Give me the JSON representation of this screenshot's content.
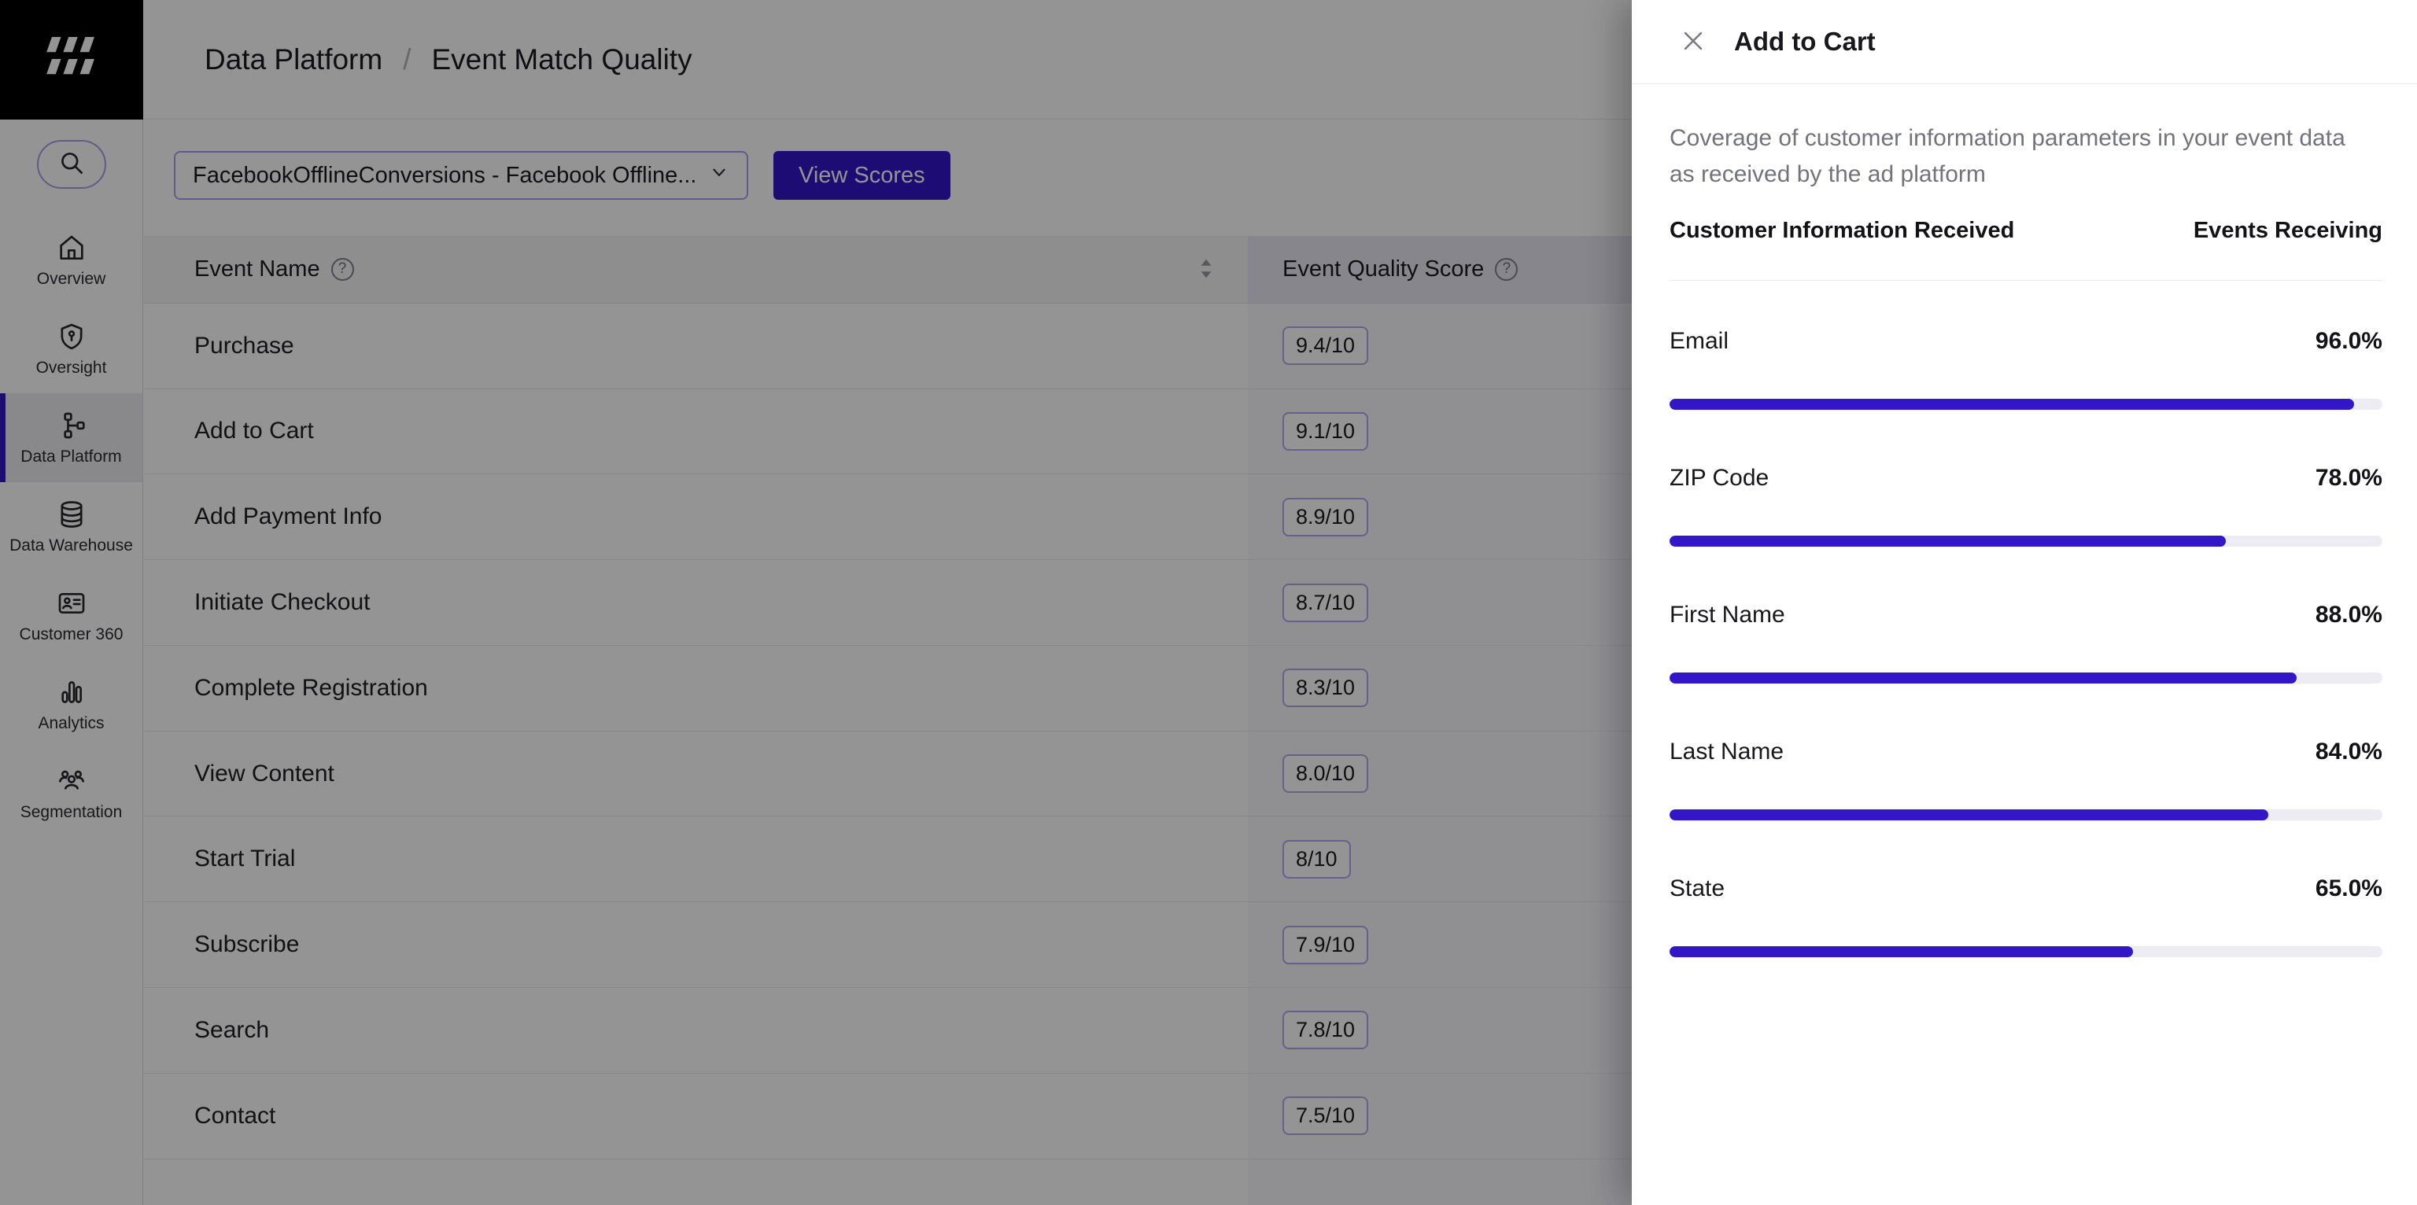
{
  "header": {
    "breadcrumb": {
      "section": "Data Platform",
      "separator": "/",
      "page": "Event Match Quality"
    }
  },
  "sidebar": {
    "items": [
      {
        "label": "Overview",
        "icon": "home-icon",
        "active": false
      },
      {
        "label": "Oversight",
        "icon": "shield-icon",
        "active": false
      },
      {
        "label": "Data Platform",
        "icon": "data-platform-icon",
        "active": true
      },
      {
        "label": "Data Warehouse",
        "icon": "database-icon",
        "active": false
      },
      {
        "label": "Customer 360",
        "icon": "id-card-icon",
        "active": false
      },
      {
        "label": "Analytics",
        "icon": "bar-chart-icon",
        "active": false
      },
      {
        "label": "Segmentation",
        "icon": "users-icon",
        "active": false
      }
    ]
  },
  "toolbar": {
    "connection_selector_value": "FacebookOfflineConversions - Facebook Offline...",
    "view_scores_label": "View Scores"
  },
  "table": {
    "columns": {
      "event_name": "Event Name",
      "event_quality_score": "Event Quality Score"
    },
    "rows": [
      {
        "event": "Purchase",
        "score": "9.4/10"
      },
      {
        "event": "Add to Cart",
        "score": "9.1/10"
      },
      {
        "event": "Add Payment Info",
        "score": "8.9/10"
      },
      {
        "event": "Initiate Checkout",
        "score": "8.7/10"
      },
      {
        "event": "Complete Registration",
        "score": "8.3/10"
      },
      {
        "event": "View Content",
        "score": "8.0/10"
      },
      {
        "event": "Start Trial",
        "score": "8/10"
      },
      {
        "event": "Subscribe",
        "score": "7.9/10"
      },
      {
        "event": "Search",
        "score": "7.8/10"
      },
      {
        "event": "Contact",
        "score": "7.5/10"
      }
    ]
  },
  "drawer": {
    "title": "Add to Cart",
    "description": "Coverage of customer information parameters in your event data as received by the ad platform",
    "section_headers": {
      "left": "Customer Information Received",
      "right": "Events Receiving"
    },
    "metrics": [
      {
        "label": "Email",
        "value": "96.0%",
        "percent": 96
      },
      {
        "label": "ZIP Code",
        "value": "78.0%",
        "percent": 78
      },
      {
        "label": "First Name",
        "value": "88.0%",
        "percent": 88
      },
      {
        "label": "Last Name",
        "value": "84.0%",
        "percent": 84
      },
      {
        "label": "State",
        "value": "65.0%",
        "percent": 65
      }
    ]
  },
  "colors": {
    "accent_indigo": "#3316C7",
    "badge_border": "#B3A6EC",
    "score_column_header_bg": "#E9E7F1",
    "score_column_cell_bg": "#F8F7FB",
    "scrim": "rgba(0,0,0,0.42)"
  }
}
